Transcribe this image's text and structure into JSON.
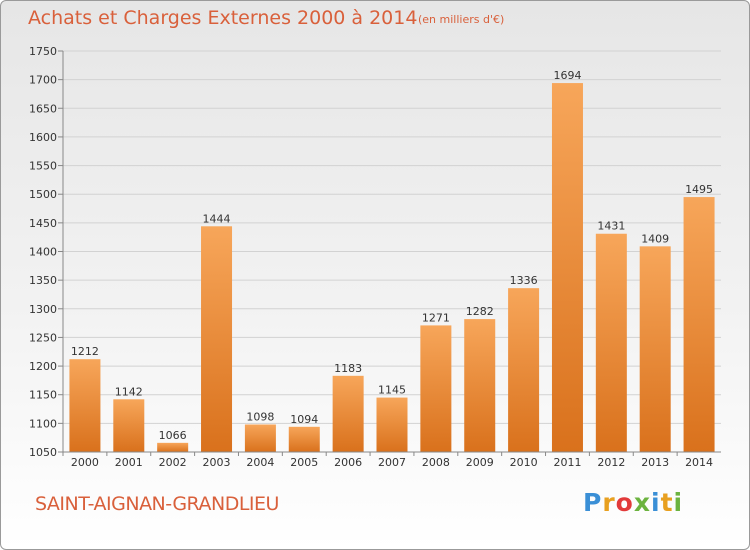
{
  "header": {
    "title": "Achats et Charges Externes 2000 à 2014",
    "unit": "(en milliers d'€)"
  },
  "footer": {
    "commune": "SAINT-AIGNAN-GRANDLIEU",
    "logo": {
      "letters": [
        "P",
        "r",
        "o",
        "x",
        "i",
        "t",
        "i"
      ],
      "colors": [
        "#3a8fd6",
        "#e8a020",
        "#e23a3a",
        "#6cb33f",
        "#3a8fd6",
        "#e8a020",
        "#6cb33f"
      ]
    }
  },
  "colors": {
    "bar_light": "#f7a65a",
    "bar_dark": "#d9711c",
    "text_accent": "#d9603b"
  },
  "chart_data": {
    "type": "bar",
    "categories": [
      "2000",
      "2001",
      "2002",
      "2003",
      "2004",
      "2005",
      "2006",
      "2007",
      "2008",
      "2009",
      "2010",
      "2011",
      "2012",
      "2013",
      "2014"
    ],
    "values": [
      1212,
      1142,
      1066,
      1444,
      1098,
      1094,
      1183,
      1145,
      1271,
      1282,
      1336,
      1694,
      1431,
      1409,
      1495
    ],
    "ylim": [
      1050,
      1750
    ],
    "yticks": [
      1050,
      1100,
      1150,
      1200,
      1250,
      1300,
      1350,
      1400,
      1450,
      1500,
      1550,
      1600,
      1650,
      1700,
      1750
    ],
    "grid": true,
    "xlabel": "",
    "ylabel": ""
  }
}
